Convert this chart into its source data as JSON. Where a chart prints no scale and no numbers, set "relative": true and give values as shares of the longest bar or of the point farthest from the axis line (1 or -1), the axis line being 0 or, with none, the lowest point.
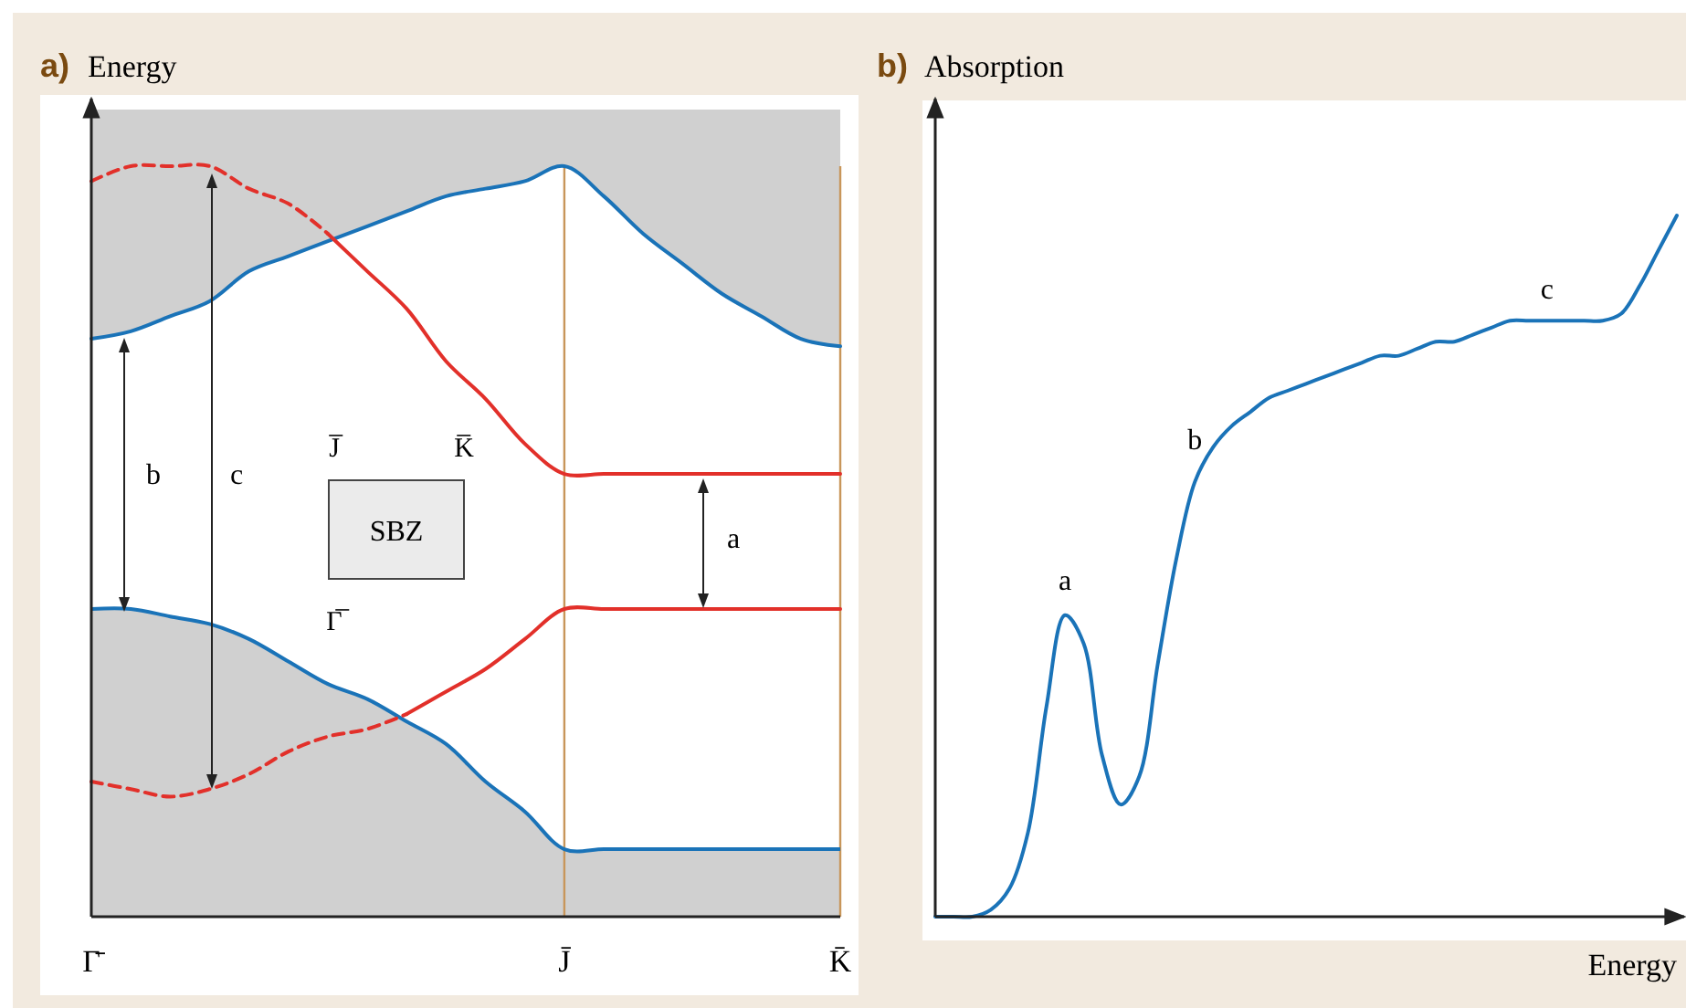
{
  "chart_data": [
    {
      "type": "line",
      "title": "a)",
      "ylabel": "Energy",
      "relative": true,
      "categories": [
        "Γ̄",
        null,
        null,
        null,
        null,
        null,
        null,
        null,
        null,
        null,
        null,
        null,
        "J̄",
        null,
        null,
        null,
        null,
        null,
        null,
        "K̄"
      ],
      "series": [
        {
          "color": "#1a73b8",
          "values": [
            0.77,
            0.78,
            0.8,
            0.82,
            0.86,
            0.88,
            0.9,
            0.92,
            0.94,
            0.96,
            0.97,
            0.98,
            1,
            0.96,
            0.91,
            0.87,
            0.83,
            0.8,
            0.77,
            0.76
          ]
        },
        {
          "type": "area",
          "color": "#1a73b8",
          "values": [
            0.41,
            0.41,
            0.4,
            0.39,
            0.37,
            0.34,
            0.31,
            0.29,
            0.26,
            0.23,
            0.18,
            0.14,
            0.09,
            0.09,
            0.09,
            0.09,
            0.09,
            0.09,
            0.09,
            0.09
          ]
        },
        {
          "color": "#e2302a",
          "line_style": "dashed",
          "values": [
            0.98,
            1,
            1,
            1,
            0.97,
            0.95,
            0.91,
            null,
            null,
            null,
            null,
            null,
            null,
            null,
            null,
            null,
            null,
            null,
            null,
            null
          ]
        },
        {
          "color": "#e2302a",
          "line_style": "solid",
          "values": [
            null,
            null,
            null,
            null,
            null,
            null,
            0.91,
            0.86,
            0.81,
            0.74,
            0.69,
            0.63,
            0.59,
            0.59,
            0.59,
            0.59,
            0.59,
            0.59,
            0.59,
            0.59
          ]
        },
        {
          "color": "#e2302a",
          "line_style": "dashed",
          "values": [
            0.18,
            0.17,
            0.16,
            0.17,
            0.19,
            0.22,
            0.24,
            0.25,
            0.27,
            null,
            null,
            null,
            null,
            null,
            null,
            null,
            null,
            null,
            null,
            null
          ]
        },
        {
          "color": "#e2302a",
          "line_style": "solid",
          "values": [
            null,
            null,
            null,
            null,
            null,
            null,
            null,
            null,
            0.27,
            0.3,
            0.33,
            0.37,
            0.41,
            0.41,
            0.41,
            0.41,
            0.41,
            0.41,
            0.41,
            0.41
          ]
        }
      ],
      "ref_lines": [
        {
          "axis": "x",
          "value": "J̄",
          "color": "#c8965a"
        },
        {
          "axis": "x",
          "value": "K̄",
          "color": "#c8965a"
        }
      ],
      "annotations": [
        "b",
        "c",
        "a",
        "SBZ",
        "J̅",
        "K̅",
        "Γ̅"
      ]
    },
    {
      "type": "line",
      "title": "b)",
      "ylabel": "Absorption",
      "xlabel": "Energy",
      "relative": true,
      "categories": [
        null,
        null,
        null,
        null,
        null,
        null,
        null,
        null,
        null,
        null,
        null,
        null,
        null,
        null,
        null,
        null,
        null,
        null,
        null,
        null,
        null,
        null,
        null,
        null,
        null,
        null,
        null,
        null,
        null,
        null,
        null,
        null,
        null,
        null,
        null,
        null,
        null,
        null,
        null,
        null,
        null
      ],
      "series": [
        {
          "color": "#1a73b8",
          "values": [
            0,
            0,
            0,
            0.01,
            0.04,
            0.12,
            0.3,
            0.43,
            0.39,
            0.23,
            0.16,
            0.2,
            0.36,
            0.51,
            0.62,
            0.67,
            0.7,
            0.72,
            0.74,
            0.75,
            0.76,
            0.77,
            0.78,
            0.79,
            0.8,
            0.8,
            0.81,
            0.82,
            0.82,
            0.83,
            0.84,
            0.85,
            0.85,
            0.85,
            0.85,
            0.85,
            0.85,
            0.86,
            0.9,
            0.95,
            1
          ]
        }
      ],
      "annotations": [
        "a",
        "b",
        "c"
      ]
    }
  ]
}
